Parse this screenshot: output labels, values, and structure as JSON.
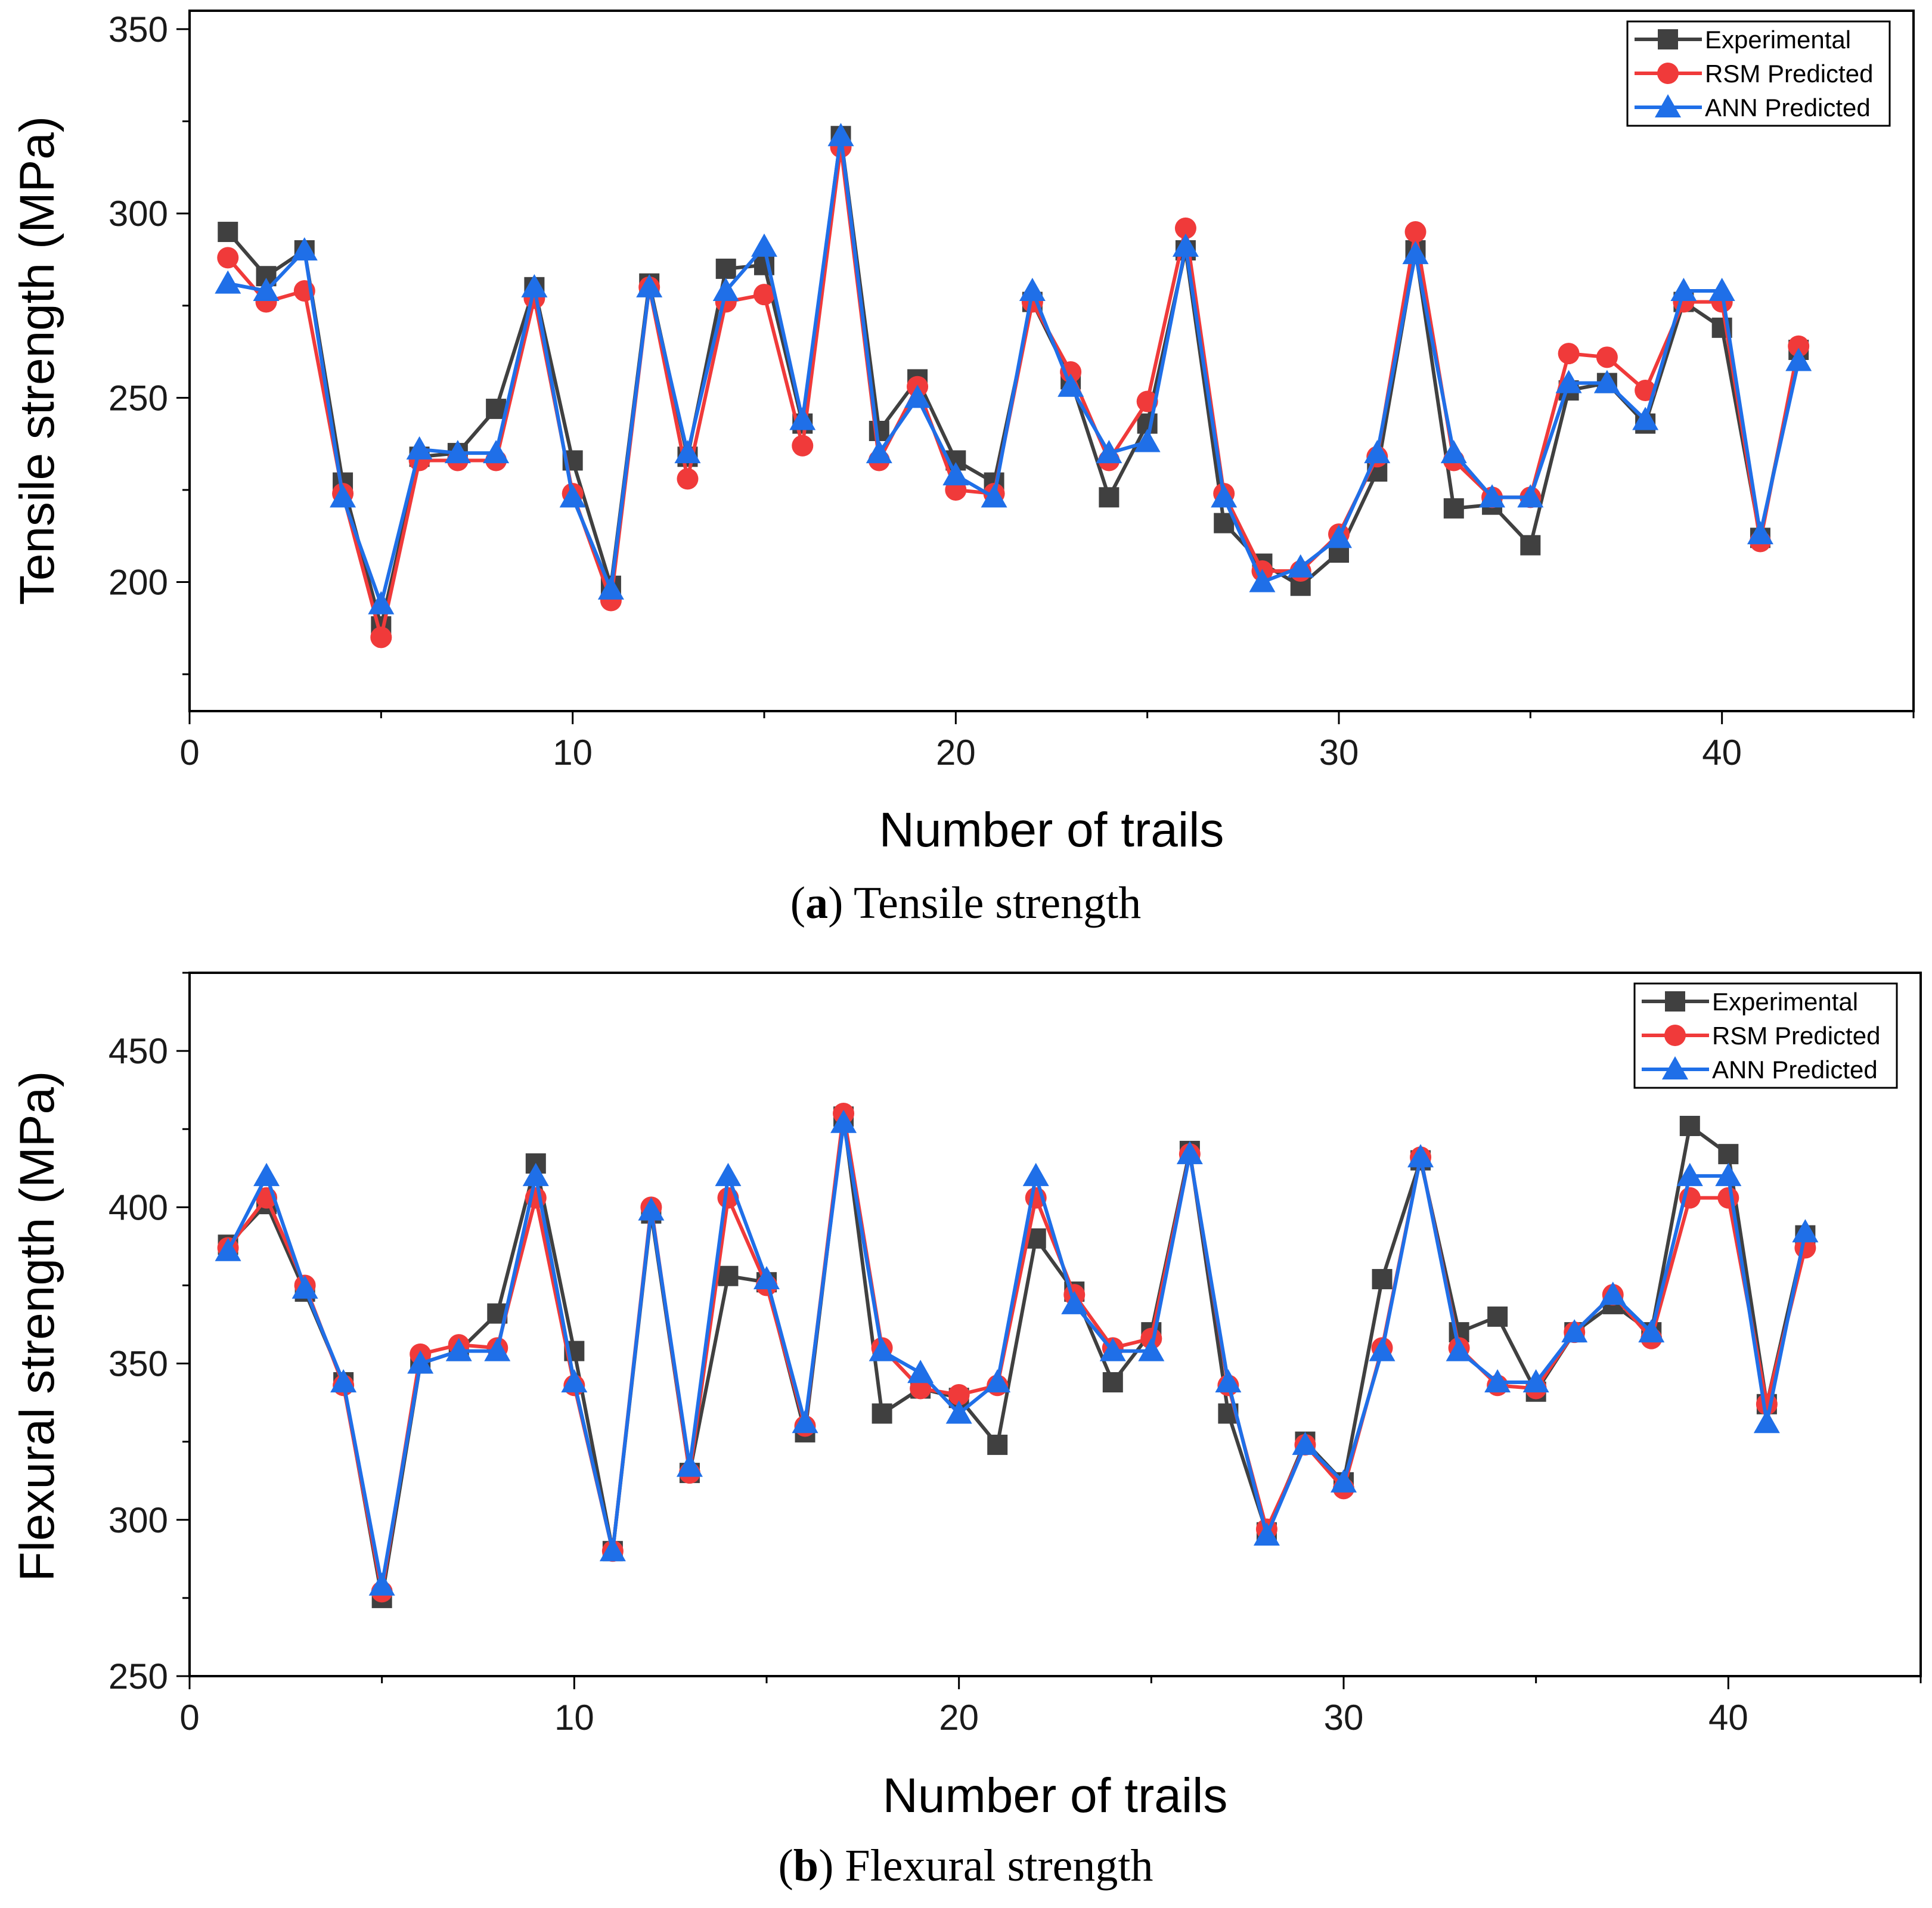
{
  "chart_data": [
    {
      "type": "line",
      "caption": {
        "letter": "a",
        "text": "Tensile strength"
      },
      "xlabel": "Number of trails",
      "ylabel": "Tensile strength (MPa)",
      "xlim": [
        0,
        45
      ],
      "ylim": [
        165,
        355
      ],
      "x_ticks": [
        0,
        10,
        20,
        30,
        40
      ],
      "y_ticks": [
        200,
        250,
        300,
        350
      ],
      "grid": false,
      "legend_position": "top-right",
      "x": [
        1,
        2,
        3,
        4,
        5,
        6,
        7,
        8,
        9,
        10,
        11,
        12,
        13,
        14,
        15,
        16,
        17,
        18,
        19,
        20,
        21,
        22,
        23,
        24,
        25,
        26,
        27,
        28,
        29,
        30,
        31,
        32,
        33,
        34,
        35,
        36,
        37,
        38,
        39,
        40,
        41,
        42
      ],
      "series": [
        {
          "name": "Experimental",
          "color": "#404040",
          "marker": "square",
          "values": [
            295,
            283,
            290,
            227,
            188,
            234,
            235,
            247,
            280,
            233,
            199,
            281,
            234,
            285,
            286,
            243,
            321,
            241,
            255,
            233,
            227,
            276,
            255,
            223,
            243,
            290,
            216,
            205,
            199,
            208,
            230,
            290,
            220,
            221,
            210,
            252,
            254,
            243,
            276,
            269,
            212,
            263
          ]
        },
        {
          "name": "RSM Predicted",
          "color": "#f03a3a",
          "marker": "circle",
          "values": [
            288,
            276,
            279,
            224,
            185,
            233,
            233,
            233,
            277,
            224,
            195,
            280,
            228,
            276,
            278,
            237,
            318,
            233,
            253,
            225,
            224,
            276,
            257,
            233,
            249,
            296,
            224,
            203,
            203,
            213,
            234,
            295,
            233,
            223,
            223,
            262,
            261,
            252,
            276,
            276,
            211,
            264
          ]
        },
        {
          "name": "ANN Predicted",
          "color": "#1f6fe8",
          "marker": "triangle",
          "values": [
            281,
            279,
            290,
            223,
            194,
            236,
            235,
            235,
            280,
            223,
            198,
            280,
            235,
            279,
            291,
            244,
            321,
            235,
            250,
            229,
            223,
            279,
            253,
            235,
            238,
            291,
            223,
            200,
            204,
            212,
            235,
            289,
            235,
            223,
            223,
            254,
            254,
            244,
            279,
            279,
            213,
            260
          ]
        }
      ]
    },
    {
      "type": "line",
      "caption": {
        "letter": "b",
        "text": "Flexural strength"
      },
      "xlabel": "Number of trails",
      "ylabel": "Flexural strength (MPa)",
      "xlim": [
        0,
        45
      ],
      "ylim": [
        250,
        475
      ],
      "x_ticks": [
        0,
        10,
        20,
        30,
        40
      ],
      "y_ticks": [
        250,
        300,
        350,
        400,
        450
      ],
      "grid": false,
      "legend_position": "top-right",
      "x": [
        1,
        2,
        3,
        4,
        5,
        6,
        7,
        8,
        9,
        10,
        11,
        12,
        13,
        14,
        15,
        16,
        17,
        18,
        19,
        20,
        21,
        22,
        23,
        24,
        25,
        26,
        27,
        28,
        29,
        30,
        31,
        32,
        33,
        34,
        35,
        36,
        37,
        38,
        39,
        40,
        41,
        42
      ],
      "series": [
        {
          "name": "Experimental",
          "color": "#404040",
          "marker": "square",
          "values": [
            388,
            401,
            373,
            344,
            275,
            350,
            354,
            366,
            414,
            354,
            290,
            398,
            315,
            378,
            376,
            328,
            429,
            334,
            342,
            339,
            324,
            390,
            373,
            344,
            360,
            418,
            334,
            296,
            325,
            312,
            377,
            415,
            360,
            365,
            341,
            360,
            369,
            360,
            426,
            417,
            337,
            391
          ]
        },
        {
          "name": "RSM Predicted",
          "color": "#f03a3a",
          "marker": "circle",
          "values": [
            387,
            403,
            375,
            343,
            277,
            353,
            356,
            355,
            403,
            343,
            290,
            400,
            315,
            403,
            375,
            330,
            430,
            355,
            342,
            340,
            343,
            403,
            372,
            355,
            358,
            417,
            343,
            297,
            324,
            310,
            355,
            416,
            355,
            343,
            342,
            360,
            372,
            358,
            403,
            403,
            337,
            387
          ]
        },
        {
          "name": "ANN Predicted",
          "color": "#1f6fe8",
          "marker": "triangle",
          "values": [
            386,
            410,
            374,
            344,
            279,
            350,
            354,
            354,
            410,
            344,
            290,
            399,
            317,
            410,
            377,
            331,
            427,
            354,
            347,
            334,
            344,
            410,
            369,
            354,
            354,
            417,
            344,
            295,
            324,
            312,
            354,
            416,
            354,
            344,
            344,
            360,
            372,
            360,
            410,
            410,
            331,
            392
          ]
        }
      ]
    }
  ]
}
